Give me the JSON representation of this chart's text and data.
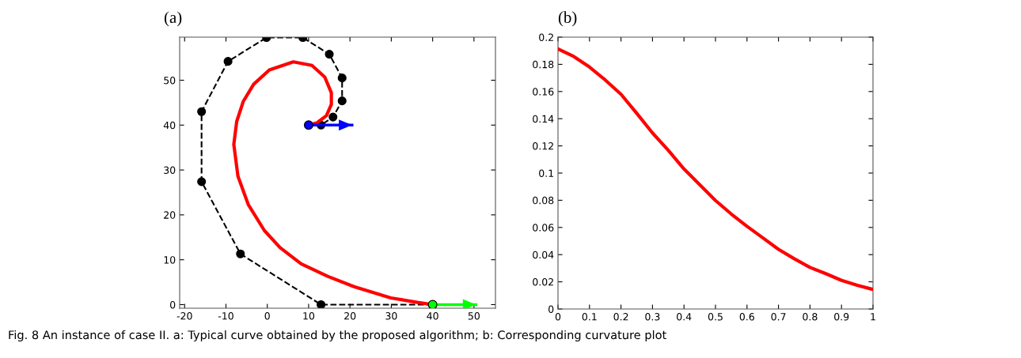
{
  "chart_data": [
    {
      "type": "line",
      "title": "(a)",
      "xlim": [
        -21.2,
        55.2
      ],
      "ylim": [
        -0.8,
        59.6
      ],
      "xticks": [
        -20,
        -10,
        0,
        10,
        20,
        30,
        40,
        50
      ],
      "yticks": [
        0,
        10,
        20,
        30,
        40,
        50
      ],
      "grid": false,
      "legend": false,
      "series": [
        {
          "color": "#000000",
          "line_style": "dashed",
          "marker": "circle",
          "x": [
            40,
            13,
            -6.5,
            -15.9,
            -15.9,
            -9.5,
            -0.2,
            8.6,
            15.0,
            18.1,
            18.1,
            15.9,
            13.0,
            10.0
          ],
          "values": [
            0,
            0,
            11.3,
            27.4,
            43.0,
            54.2,
            59.5,
            59.5,
            55.8,
            50.5,
            45.4,
            41.8,
            40.0,
            40.0
          ]
        },
        {
          "color": "#ff0000",
          "line_style": "solid",
          "marker": "none",
          "x": [
            40,
            36.3,
            29.9,
            21.0,
            14.6,
            8.2,
            3.1,
            -0.7,
            -4.6,
            -7.1,
            -8.1,
            -7.4,
            -5.8,
            -3.3,
            0.5,
            6.3,
            10.8,
            13.9,
            15.5,
            15.5,
            14.3,
            12.0,
            10.0
          ],
          "values": [
            0,
            0.5,
            1.5,
            4.0,
            6.3,
            9.1,
            12.7,
            16.5,
            22.3,
            28.6,
            35.7,
            40.8,
            45.3,
            49.1,
            52.3,
            54.1,
            53.3,
            50.7,
            47.2,
            44.6,
            42.1,
            40.5,
            40.0
          ]
        },
        {
          "type": "line",
          "color": "#0000ff",
          "line_style": "solid",
          "marker": "none",
          "x": [
            10,
            20.5
          ],
          "values": [
            40,
            40
          ]
        },
        {
          "type": "scatter",
          "color": "#0000ff",
          "marker": "circle",
          "x": [
            10
          ],
          "values": [
            40
          ]
        },
        {
          "type": "line",
          "color": "#00ff00",
          "line_style": "solid",
          "marker": "none",
          "x": [
            40,
            50.5
          ],
          "values": [
            0,
            0
          ]
        },
        {
          "type": "scatter",
          "color": "#00ff00",
          "marker": "circle",
          "x": [
            40
          ],
          "values": [
            0
          ]
        }
      ],
      "annotations": [
        "Fig. 8 An instance of case II. a: Typical curve obtained by the proposed algorithm; b: Corresponding curvature plot"
      ]
    },
    {
      "type": "line",
      "title": "(b)",
      "xlim": [
        0,
        1
      ],
      "ylim": [
        0,
        0.2
      ],
      "xticks": [
        0,
        0.1,
        0.2,
        0.3,
        0.4,
        0.5,
        0.6,
        0.7,
        0.8,
        0.9,
        1
      ],
      "yticks": [
        0,
        0.02,
        0.04,
        0.06,
        0.08,
        0.1,
        0.12,
        0.14,
        0.16,
        0.18,
        0.2
      ],
      "grid": false,
      "legend": false,
      "series": [
        {
          "color": "#ff0000",
          "line_style": "solid",
          "marker": "none",
          "x": [
            0,
            0.05,
            0.1,
            0.15,
            0.2,
            0.25,
            0.3,
            0.35,
            0.4,
            0.45,
            0.5,
            0.55,
            0.6,
            0.65,
            0.7,
            0.75,
            0.8,
            0.85,
            0.9,
            0.95,
            1
          ],
          "values": [
            0.1913,
            0.1858,
            0.178,
            0.1685,
            0.158,
            0.144,
            0.1295,
            0.1168,
            0.103,
            0.0914,
            0.0798,
            0.0699,
            0.0608,
            0.0524,
            0.0439,
            0.037,
            0.0306,
            0.026,
            0.0211,
            0.0175,
            0.0144
          ]
        }
      ]
    }
  ]
}
